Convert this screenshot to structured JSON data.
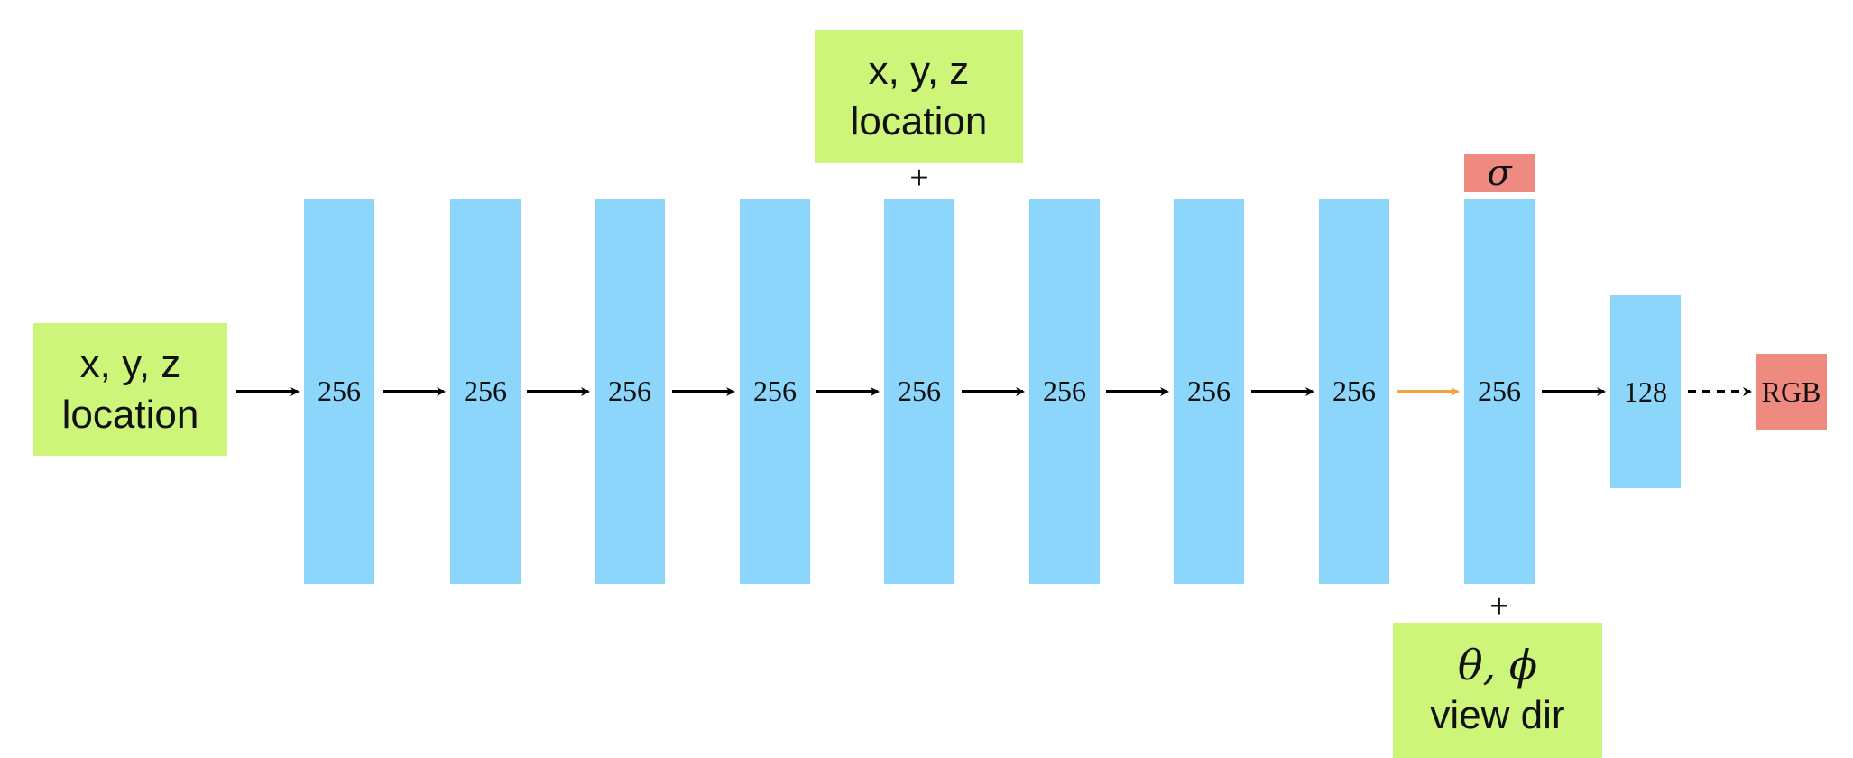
{
  "inputs": {
    "position": {
      "line1": "x, y, z",
      "line2": "location"
    },
    "skip": {
      "line1": "x, y, z",
      "line2": "location"
    },
    "view": {
      "line1": "θ, ϕ",
      "line2": "view dir"
    }
  },
  "layers": [
    {
      "units": "256"
    },
    {
      "units": "256"
    },
    {
      "units": "256"
    },
    {
      "units": "256"
    },
    {
      "units": "256"
    },
    {
      "units": "256"
    },
    {
      "units": "256"
    },
    {
      "units": "256"
    },
    {
      "units": "256"
    },
    {
      "units": "128"
    }
  ],
  "outputs": {
    "density": "σ",
    "color": "RGB"
  },
  "concat_symbol": "+",
  "colors": {
    "input": "#ccf57a",
    "layer": "#8cd5fb",
    "output": "#ef8a80",
    "arrow": "#000000",
    "highlight_arrow": "#f4a23c"
  }
}
